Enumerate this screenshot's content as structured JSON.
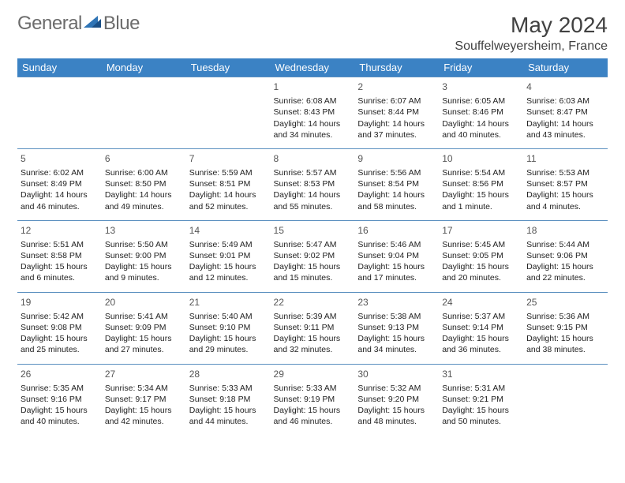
{
  "logo": {
    "general": "General",
    "blue": "Blue"
  },
  "title": "May 2024",
  "location": "Souffelweyersheim, France",
  "colors": {
    "header_bg": "#3b82c4",
    "header_text": "#ffffff",
    "border": "#5a8fbf",
    "text": "#222222",
    "logo_gray": "#6c6c6c",
    "logo_blue": "#2f74b5"
  },
  "days_of_week": [
    "Sunday",
    "Monday",
    "Tuesday",
    "Wednesday",
    "Thursday",
    "Friday",
    "Saturday"
  ],
  "weeks": [
    [
      null,
      null,
      null,
      {
        "n": "1",
        "sr": "Sunrise: 6:08 AM",
        "ss": "Sunset: 8:43 PM",
        "dl": "Daylight: 14 hours and 34 minutes."
      },
      {
        "n": "2",
        "sr": "Sunrise: 6:07 AM",
        "ss": "Sunset: 8:44 PM",
        "dl": "Daylight: 14 hours and 37 minutes."
      },
      {
        "n": "3",
        "sr": "Sunrise: 6:05 AM",
        "ss": "Sunset: 8:46 PM",
        "dl": "Daylight: 14 hours and 40 minutes."
      },
      {
        "n": "4",
        "sr": "Sunrise: 6:03 AM",
        "ss": "Sunset: 8:47 PM",
        "dl": "Daylight: 14 hours and 43 minutes."
      }
    ],
    [
      {
        "n": "5",
        "sr": "Sunrise: 6:02 AM",
        "ss": "Sunset: 8:49 PM",
        "dl": "Daylight: 14 hours and 46 minutes."
      },
      {
        "n": "6",
        "sr": "Sunrise: 6:00 AM",
        "ss": "Sunset: 8:50 PM",
        "dl": "Daylight: 14 hours and 49 minutes."
      },
      {
        "n": "7",
        "sr": "Sunrise: 5:59 AM",
        "ss": "Sunset: 8:51 PM",
        "dl": "Daylight: 14 hours and 52 minutes."
      },
      {
        "n": "8",
        "sr": "Sunrise: 5:57 AM",
        "ss": "Sunset: 8:53 PM",
        "dl": "Daylight: 14 hours and 55 minutes."
      },
      {
        "n": "9",
        "sr": "Sunrise: 5:56 AM",
        "ss": "Sunset: 8:54 PM",
        "dl": "Daylight: 14 hours and 58 minutes."
      },
      {
        "n": "10",
        "sr": "Sunrise: 5:54 AM",
        "ss": "Sunset: 8:56 PM",
        "dl": "Daylight: 15 hours and 1 minute."
      },
      {
        "n": "11",
        "sr": "Sunrise: 5:53 AM",
        "ss": "Sunset: 8:57 PM",
        "dl": "Daylight: 15 hours and 4 minutes."
      }
    ],
    [
      {
        "n": "12",
        "sr": "Sunrise: 5:51 AM",
        "ss": "Sunset: 8:58 PM",
        "dl": "Daylight: 15 hours and 6 minutes."
      },
      {
        "n": "13",
        "sr": "Sunrise: 5:50 AM",
        "ss": "Sunset: 9:00 PM",
        "dl": "Daylight: 15 hours and 9 minutes."
      },
      {
        "n": "14",
        "sr": "Sunrise: 5:49 AM",
        "ss": "Sunset: 9:01 PM",
        "dl": "Daylight: 15 hours and 12 minutes."
      },
      {
        "n": "15",
        "sr": "Sunrise: 5:47 AM",
        "ss": "Sunset: 9:02 PM",
        "dl": "Daylight: 15 hours and 15 minutes."
      },
      {
        "n": "16",
        "sr": "Sunrise: 5:46 AM",
        "ss": "Sunset: 9:04 PM",
        "dl": "Daylight: 15 hours and 17 minutes."
      },
      {
        "n": "17",
        "sr": "Sunrise: 5:45 AM",
        "ss": "Sunset: 9:05 PM",
        "dl": "Daylight: 15 hours and 20 minutes."
      },
      {
        "n": "18",
        "sr": "Sunrise: 5:44 AM",
        "ss": "Sunset: 9:06 PM",
        "dl": "Daylight: 15 hours and 22 minutes."
      }
    ],
    [
      {
        "n": "19",
        "sr": "Sunrise: 5:42 AM",
        "ss": "Sunset: 9:08 PM",
        "dl": "Daylight: 15 hours and 25 minutes."
      },
      {
        "n": "20",
        "sr": "Sunrise: 5:41 AM",
        "ss": "Sunset: 9:09 PM",
        "dl": "Daylight: 15 hours and 27 minutes."
      },
      {
        "n": "21",
        "sr": "Sunrise: 5:40 AM",
        "ss": "Sunset: 9:10 PM",
        "dl": "Daylight: 15 hours and 29 minutes."
      },
      {
        "n": "22",
        "sr": "Sunrise: 5:39 AM",
        "ss": "Sunset: 9:11 PM",
        "dl": "Daylight: 15 hours and 32 minutes."
      },
      {
        "n": "23",
        "sr": "Sunrise: 5:38 AM",
        "ss": "Sunset: 9:13 PM",
        "dl": "Daylight: 15 hours and 34 minutes."
      },
      {
        "n": "24",
        "sr": "Sunrise: 5:37 AM",
        "ss": "Sunset: 9:14 PM",
        "dl": "Daylight: 15 hours and 36 minutes."
      },
      {
        "n": "25",
        "sr": "Sunrise: 5:36 AM",
        "ss": "Sunset: 9:15 PM",
        "dl": "Daylight: 15 hours and 38 minutes."
      }
    ],
    [
      {
        "n": "26",
        "sr": "Sunrise: 5:35 AM",
        "ss": "Sunset: 9:16 PM",
        "dl": "Daylight: 15 hours and 40 minutes."
      },
      {
        "n": "27",
        "sr": "Sunrise: 5:34 AM",
        "ss": "Sunset: 9:17 PM",
        "dl": "Daylight: 15 hours and 42 minutes."
      },
      {
        "n": "28",
        "sr": "Sunrise: 5:33 AM",
        "ss": "Sunset: 9:18 PM",
        "dl": "Daylight: 15 hours and 44 minutes."
      },
      {
        "n": "29",
        "sr": "Sunrise: 5:33 AM",
        "ss": "Sunset: 9:19 PM",
        "dl": "Daylight: 15 hours and 46 minutes."
      },
      {
        "n": "30",
        "sr": "Sunrise: 5:32 AM",
        "ss": "Sunset: 9:20 PM",
        "dl": "Daylight: 15 hours and 48 minutes."
      },
      {
        "n": "31",
        "sr": "Sunrise: 5:31 AM",
        "ss": "Sunset: 9:21 PM",
        "dl": "Daylight: 15 hours and 50 minutes."
      },
      null
    ]
  ]
}
